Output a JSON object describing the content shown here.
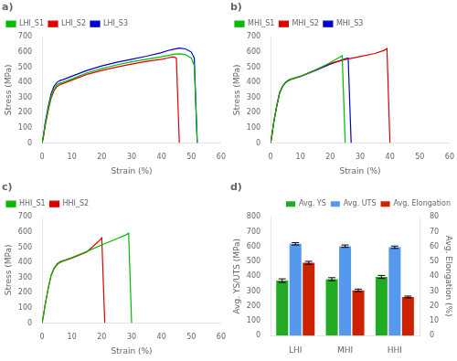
{
  "chart_data": [
    {
      "type": "line",
      "title": "a)",
      "x_label": "Strain (%)",
      "y_label": "Stress (MPa)",
      "xlim": [
        0,
        60
      ],
      "xticks": [
        0,
        10,
        20,
        30,
        40,
        50,
        60
      ],
      "ylim": [
        0,
        700
      ],
      "yticks": [
        0,
        100,
        200,
        300,
        400,
        500,
        600,
        700
      ],
      "grid": false,
      "legend": "upper left",
      "series": [
        {
          "name": "LHI_S1",
          "color": "#00BB00",
          "x": [
            0,
            0.5,
            1,
            2,
            3,
            4,
            5,
            6,
            7,
            8,
            10,
            15,
            20,
            25,
            30,
            35,
            40,
            42,
            44,
            46,
            48,
            50,
            51,
            52
          ],
          "values": [
            0,
            50,
            120,
            220,
            310,
            360,
            385,
            395,
            400,
            408,
            422,
            462,
            490,
            515,
            535,
            552,
            568,
            576,
            585,
            588,
            582,
            560,
            510,
            0
          ]
        },
        {
          "name": "LHI_S2",
          "color": "#DD0000",
          "x": [
            0,
            0.5,
            1,
            2,
            3,
            4,
            5,
            6,
            7,
            8,
            10,
            15,
            20,
            25,
            30,
            35,
            40,
            42,
            43,
            44,
            45,
            46
          ],
          "values": [
            0,
            50,
            110,
            210,
            295,
            345,
            372,
            385,
            392,
            400,
            415,
            452,
            478,
            500,
            520,
            538,
            552,
            560,
            565,
            568,
            560,
            0
          ]
        },
        {
          "name": "LHI_S3",
          "color": "#0000CC",
          "x": [
            0,
            0.5,
            1,
            2,
            3,
            4,
            5,
            6,
            7,
            8,
            10,
            15,
            20,
            25,
            30,
            35,
            40,
            42,
            44,
            46,
            48,
            50,
            51,
            52
          ],
          "values": [
            0,
            55,
            130,
            235,
            325,
            375,
            400,
            412,
            418,
            425,
            440,
            478,
            508,
            532,
            552,
            572,
            595,
            608,
            618,
            625,
            620,
            600,
            560,
            0
          ]
        }
      ]
    },
    {
      "type": "line",
      "title": "b)",
      "x_label": "Strain (%)",
      "y_label": "Stress (MPa)",
      "xlim": [
        0,
        60
      ],
      "xticks": [
        0,
        10,
        20,
        30,
        40,
        50,
        60
      ],
      "ylim": [
        0,
        700
      ],
      "yticks": [
        0,
        100,
        200,
        300,
        400,
        500,
        600,
        700
      ],
      "grid": false,
      "legend": "upper left",
      "series": [
        {
          "name": "MHI_S1",
          "color": "#00BB00",
          "x": [
            0,
            0.5,
            1,
            2,
            3,
            4,
            5,
            6,
            7,
            8,
            10,
            15,
            20,
            24,
            25
          ],
          "values": [
            0,
            60,
            130,
            240,
            330,
            375,
            400,
            415,
            422,
            428,
            440,
            480,
            530,
            575,
            0
          ]
        },
        {
          "name": "MHI_S2",
          "color": "#DD0000",
          "x": [
            0,
            0.5,
            1,
            2,
            3,
            4,
            5,
            6,
            7,
            8,
            10,
            15,
            20,
            25,
            30,
            35,
            38,
            39,
            40
          ],
          "values": [
            0,
            60,
            130,
            240,
            330,
            375,
            400,
            415,
            422,
            428,
            440,
            482,
            525,
            550,
            570,
            590,
            610,
            622,
            0
          ]
        },
        {
          "name": "MHI_S3",
          "color": "#0000CC",
          "x": [
            0,
            0.5,
            1,
            2,
            3,
            4,
            5,
            6,
            7,
            8,
            10,
            15,
            20,
            25,
            26,
            27
          ],
          "values": [
            0,
            60,
            130,
            238,
            328,
            372,
            398,
            412,
            420,
            426,
            438,
            478,
            520,
            555,
            560,
            0
          ]
        }
      ]
    },
    {
      "type": "line",
      "title": "c)",
      "x_label": "Strain (%)",
      "y_label": "Stress (MPa)",
      "xlim": [
        0,
        60
      ],
      "xticks": [
        0,
        10,
        20,
        30,
        40,
        50,
        60
      ],
      "ylim": [
        0,
        700
      ],
      "yticks": [
        0,
        100,
        200,
        300,
        400,
        500,
        600,
        700
      ],
      "grid": false,
      "legend": "upper left",
      "series": [
        {
          "name": "HHI_S1",
          "color": "#00BB00",
          "x": [
            0,
            0.5,
            1,
            2,
            3,
            4,
            5,
            6,
            7,
            8,
            10,
            15,
            20,
            25,
            28,
            29,
            30
          ],
          "values": [
            0,
            55,
            120,
            225,
            315,
            362,
            390,
            405,
            412,
            418,
            432,
            472,
            515,
            555,
            580,
            592,
            0
          ]
        },
        {
          "name": "HHI_S2",
          "color": "#DD0000",
          "x": [
            0,
            0.5,
            1,
            2,
            3,
            4,
            5,
            6,
            7,
            8,
            10,
            15,
            19,
            20,
            21
          ],
          "values": [
            0,
            55,
            120,
            222,
            312,
            358,
            385,
            400,
            408,
            414,
            428,
            468,
            540,
            560,
            0
          ]
        }
      ]
    },
    {
      "type": "bar",
      "title": "d)",
      "categories": [
        "LHI",
        "MHI",
        "HHI"
      ],
      "y_label": "Avg. YS/UTS (MPa)",
      "y2_label": "Avg. Elongation (%)",
      "ylim": [
        0,
        800
      ],
      "yticks": [
        0,
        100,
        200,
        300,
        400,
        500,
        600,
        700,
        800
      ],
      "y2lim": [
        0,
        80
      ],
      "y2ticks": [
        0,
        10,
        20,
        30,
        40,
        50,
        60,
        70,
        80
      ],
      "grid": false,
      "legend": "upper right",
      "series": [
        {
          "name": "Avg. YS",
          "color": "#22AA22",
          "values": [
            370,
            380,
            395
          ],
          "errors": [
            12,
            10,
            10
          ]
        },
        {
          "name": "Avg. UTS",
          "color": "#5599EE",
          "values": [
            618,
            602,
            595
          ],
          "errors": [
            8,
            8,
            8
          ]
        },
        {
          "name": "Avg. Elongation",
          "color": "#CC2200",
          "values": [
            490,
            305,
            260
          ],
          "errors": [
            10,
            8,
            6
          ]
        }
      ]
    }
  ]
}
